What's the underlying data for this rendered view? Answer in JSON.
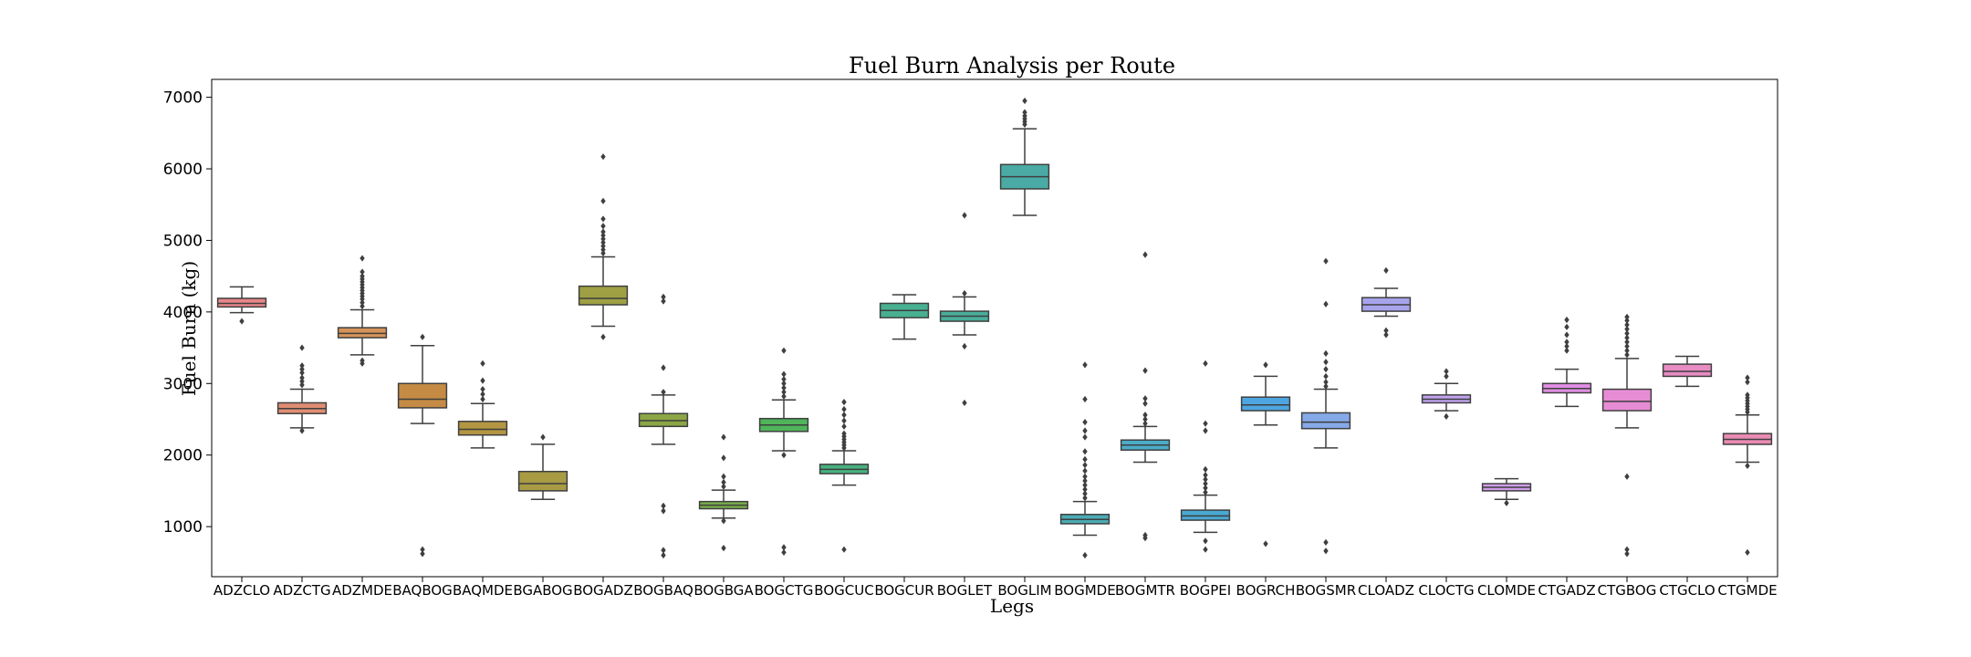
{
  "chart_data": {
    "type": "box",
    "title": "Fuel Burn Analysis per Route",
    "xlabel": "Legs",
    "ylabel": "Fuel Burn (kg)",
    "ylim": [
      300,
      7250
    ],
    "yticks": [
      1000,
      2000,
      3000,
      4000,
      5000,
      6000,
      7000
    ],
    "grid": false,
    "legend": "none",
    "categories": [
      "ADZCLO",
      "ADZCTG",
      "ADZMDE",
      "BAQBOG",
      "BAQMDE",
      "BGABOG",
      "BOGADZ",
      "BOGBAQ",
      "BOGBGA",
      "BOGCTG",
      "BOGCUC",
      "BOGCUR",
      "BOGLET",
      "BOGLIM",
      "BOGMDE",
      "BOGMTR",
      "BOGPEI",
      "BOGRCH",
      "BOGSMR",
      "CLOADZ",
      "CLOCTG",
      "CLOMDE",
      "CTGADZ",
      "CTGBOG",
      "CTGCLO",
      "CTGMDE"
    ],
    "boxes": [
      {
        "label": "ADZCLO",
        "color": "#e8868a",
        "whislo": 3990,
        "q1": 4070,
        "med": 4120,
        "q3": 4190,
        "whishi": 4350,
        "fliers": [
          3870
        ]
      },
      {
        "label": "ADZCTG",
        "color": "#df8e73",
        "whislo": 2380,
        "q1": 2580,
        "med": 2650,
        "q3": 2730,
        "whishi": 2920,
        "fliers": [
          2340,
          2980,
          3030,
          3080,
          3150,
          3200,
          3250,
          3500
        ]
      },
      {
        "label": "ADZMDE",
        "color": "#d6935a",
        "whislo": 3400,
        "q1": 3640,
        "med": 3700,
        "q3": 3780,
        "whishi": 4030,
        "fliers": [
          3280,
          3320,
          4080,
          4130,
          4180,
          4220,
          4260,
          4300,
          4340,
          4380,
          4420,
          4460,
          4500,
          4560,
          4750
        ]
      },
      {
        "label": "BAQBOG",
        "color": "#c58b44",
        "whislo": 2440,
        "q1": 2660,
        "med": 2780,
        "q3": 3000,
        "whishi": 3530,
        "fliers": [
          620,
          680,
          3650
        ]
      },
      {
        "label": "BAQMDE",
        "color": "#b39642",
        "whislo": 2100,
        "q1": 2280,
        "med": 2360,
        "q3": 2470,
        "whishi": 2720,
        "fliers": [
          2780,
          2850,
          2920,
          3040,
          3280
        ]
      },
      {
        "label": "BGABOG",
        "color": "#a89b44",
        "whislo": 1380,
        "q1": 1500,
        "med": 1600,
        "q3": 1770,
        "whishi": 2150,
        "fliers": [
          2250
        ]
      },
      {
        "label": "BOGADZ",
        "color": "#9fa044",
        "whislo": 3800,
        "q1": 4100,
        "med": 4190,
        "q3": 4360,
        "whishi": 4770,
        "fliers": [
          3650,
          4820,
          4870,
          4920,
          4970,
          5020,
          5070,
          5120,
          5200,
          5300,
          5550,
          6170
        ]
      },
      {
        "label": "BOGBAQ",
        "color": "#8ca645",
        "whislo": 2150,
        "q1": 2400,
        "med": 2480,
        "q3": 2580,
        "whishi": 2840,
        "fliers": [
          600,
          670,
          1220,
          1290,
          2880,
          3220,
          4150,
          4210
        ]
      },
      {
        "label": "BOGBGA",
        "color": "#77ad4a",
        "whislo": 1120,
        "q1": 1250,
        "med": 1300,
        "q3": 1350,
        "whishi": 1510,
        "fliers": [
          700,
          1080,
          1560,
          1620,
          1700,
          1960,
          2250
        ]
      },
      {
        "label": "BOGCTG",
        "color": "#4fb45a",
        "whislo": 2060,
        "q1": 2330,
        "med": 2420,
        "q3": 2510,
        "whishi": 2770,
        "fliers": [
          640,
          710,
          2000,
          2820,
          2880,
          2940,
          3000,
          3060,
          3130,
          3460
        ]
      },
      {
        "label": "BOGCUC",
        "color": "#48b27f",
        "whislo": 1580,
        "q1": 1740,
        "med": 1800,
        "q3": 1870,
        "whishi": 2060,
        "fliers": [
          680,
          2100,
          2140,
          2180,
          2220,
          2260,
          2300,
          2400,
          2480,
          2560,
          2640,
          2740
        ]
      },
      {
        "label": "BOGCUR",
        "color": "#48b090",
        "whislo": 3620,
        "q1": 3920,
        "med": 4020,
        "q3": 4120,
        "whishi": 4240,
        "fliers": []
      },
      {
        "label": "BOGLET",
        "color": "#49ae9b",
        "whislo": 3680,
        "q1": 3870,
        "med": 3940,
        "q3": 4010,
        "whishi": 4210,
        "fliers": [
          2730,
          3520,
          4260,
          5350
        ]
      },
      {
        "label": "BOGLIM",
        "color": "#4aaba5",
        "whislo": 5350,
        "q1": 5720,
        "med": 5890,
        "q3": 6060,
        "whishi": 6560,
        "fliers": [
          6620,
          6660,
          6700,
          6740,
          6790,
          6950
        ]
      },
      {
        "label": "BOGMDE",
        "color": "#4babb4",
        "whislo": 880,
        "q1": 1040,
        "med": 1100,
        "q3": 1170,
        "whishi": 1350,
        "fliers": [
          600,
          1400,
          1460,
          1520,
          1580,
          1640,
          1700,
          1780,
          1860,
          1940,
          2050,
          2250,
          2340,
          2460,
          2780,
          3260
        ]
      },
      {
        "label": "BOGMTR",
        "color": "#4cacc8",
        "whislo": 1900,
        "q1": 2070,
        "med": 2140,
        "q3": 2210,
        "whishi": 2400,
        "fliers": [
          840,
          880,
          2440,
          2500,
          2560,
          2720,
          2790,
          3180,
          4800
        ]
      },
      {
        "label": "BOGPEI",
        "color": "#4aa9d3",
        "whislo": 920,
        "q1": 1090,
        "med": 1150,
        "q3": 1230,
        "whishi": 1440,
        "fliers": [
          680,
          800,
          1480,
          1540,
          1600,
          1660,
          1720,
          1800,
          2340,
          2440,
          3280
        ]
      },
      {
        "label": "BOGRCH",
        "color": "#4ea6e0",
        "whislo": 2420,
        "q1": 2620,
        "med": 2700,
        "q3": 2810,
        "whishi": 3100,
        "fliers": [
          760,
          3260
        ]
      },
      {
        "label": "BOGSMR",
        "color": "#86a9e8",
        "whislo": 2100,
        "q1": 2370,
        "med": 2460,
        "q3": 2590,
        "whishi": 2920,
        "fliers": [
          660,
          780,
          2960,
          3020,
          3100,
          3200,
          3300,
          3420,
          4110,
          4710
        ]
      },
      {
        "label": "CLOADZ",
        "color": "#a7a4ec",
        "whislo": 3940,
        "q1": 4010,
        "med": 4100,
        "q3": 4200,
        "whishi": 4330,
        "fliers": [
          3680,
          3740,
          4580
        ]
      },
      {
        "label": "CLOCTG",
        "color": "#c1a2ee",
        "whislo": 2620,
        "q1": 2730,
        "med": 2780,
        "q3": 2840,
        "whishi": 3000,
        "fliers": [
          2540,
          3100,
          3170
        ]
      },
      {
        "label": "CLOMDE",
        "color": "#cf9de8",
        "whislo": 1380,
        "q1": 1500,
        "med": 1550,
        "q3": 1600,
        "whishi": 1670,
        "fliers": [
          1330
        ]
      },
      {
        "label": "CTGADZ",
        "color": "#e18ee3",
        "whislo": 2680,
        "q1": 2870,
        "med": 2930,
        "q3": 3000,
        "whishi": 3200,
        "fliers": [
          3460,
          3520,
          3580,
          3680,
          3790,
          3890
        ]
      },
      {
        "label": "CTGBOG",
        "color": "#e68cd5",
        "whislo": 2380,
        "q1": 2620,
        "med": 2750,
        "q3": 2920,
        "whishi": 3350,
        "fliers": [
          620,
          680,
          1700,
          3400,
          3460,
          3520,
          3580,
          3640,
          3700,
          3760,
          3820,
          3880,
          3930
        ]
      },
      {
        "label": "CTGCLO",
        "color": "#e88cc4",
        "whislo": 2960,
        "q1": 3100,
        "med": 3170,
        "q3": 3270,
        "whishi": 3380,
        "fliers": []
      },
      {
        "label": "CTGMDE",
        "color": "#e98bb2",
        "whislo": 1900,
        "q1": 2150,
        "med": 2220,
        "q3": 2300,
        "whishi": 2560,
        "fliers": [
          640,
          1850,
          2600,
          2640,
          2680,
          2720,
          2760,
          2800,
          2840,
          3020,
          3080
        ]
      }
    ]
  }
}
